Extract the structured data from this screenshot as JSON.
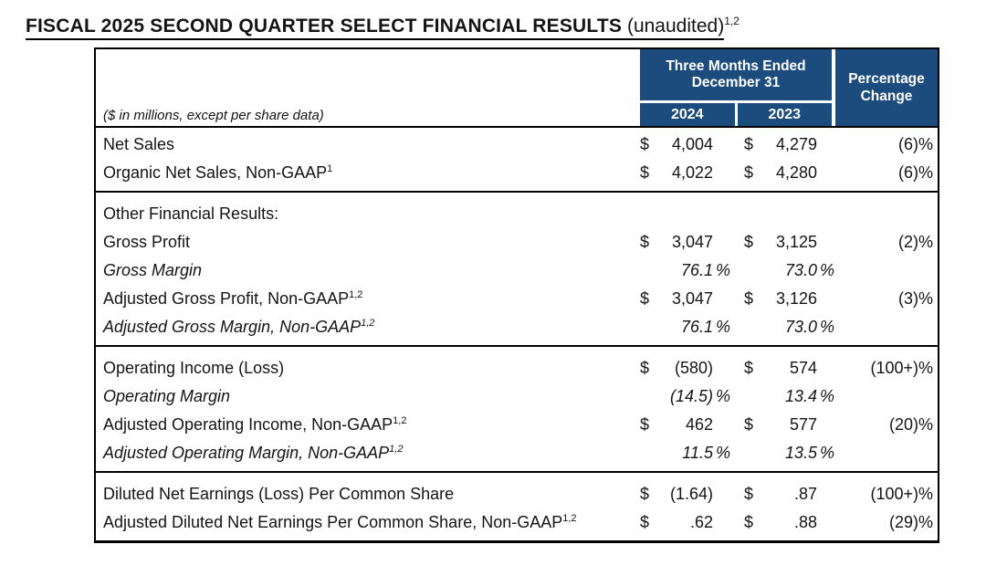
{
  "title": {
    "main": "FISCAL 2025 SECOND QUARTER SELECT FINANCIAL RESULTS",
    "unaudited": " (unaudited)",
    "superscript": "1,2"
  },
  "table": {
    "colors": {
      "header_bg": "#1C4C7E",
      "header_text": "#FFFFFF",
      "border": "#000000"
    },
    "header": {
      "period_line1": "Three Months Ended",
      "period_line2": "December 31",
      "year_2024": "2024",
      "year_2023": "2023",
      "pct_line1": "Percentage",
      "pct_line2": "Change",
      "units_note": "($ in millions, except per share data)"
    },
    "sections": [
      {
        "rows": [
          {
            "label": "Net Sales",
            "sup": "",
            "italic": false,
            "d1": "$",
            "v1": "4,004",
            "u1": "",
            "d2": "$",
            "v2": "4,279",
            "u2": "",
            "pct": "(6)%"
          },
          {
            "label": "Organic Net Sales, Non-GAAP",
            "sup": "1",
            "italic": false,
            "d1": "$",
            "v1": "4,022",
            "u1": "",
            "d2": "$",
            "v2": "4,280",
            "u2": "",
            "pct": "(6)%"
          }
        ]
      },
      {
        "rows": [
          {
            "label": "Other Financial Results:",
            "sup": "",
            "italic": false,
            "d1": "",
            "v1": "",
            "u1": "",
            "d2": "",
            "v2": "",
            "u2": "",
            "pct": ""
          },
          {
            "label": "Gross Profit",
            "sup": "",
            "italic": false,
            "d1": "$",
            "v1": "3,047",
            "u1": "",
            "d2": "$",
            "v2": "3,125",
            "u2": "",
            "pct": "(2)%"
          },
          {
            "label": "Gross Margin",
            "sup": "",
            "italic": true,
            "d1": "",
            "v1": "76.1",
            "u1": "%",
            "d2": "",
            "v2": "73.0",
            "u2": "%",
            "pct": ""
          },
          {
            "label": "Adjusted Gross Profit, Non-GAAP",
            "sup": "1,2",
            "italic": false,
            "d1": "$",
            "v1": "3,047",
            "u1": "",
            "d2": "$",
            "v2": "3,126",
            "u2": "",
            "pct": "(3)%"
          },
          {
            "label": "Adjusted Gross Margin, Non-GAAP",
            "sup": "1,2",
            "italic": true,
            "d1": "",
            "v1": "76.1",
            "u1": "%",
            "d2": "",
            "v2": "73.0",
            "u2": "%",
            "pct": ""
          }
        ]
      },
      {
        "rows": [
          {
            "label": "Operating Income (Loss)",
            "sup": "",
            "italic": false,
            "d1": "$",
            "v1": "(580)",
            "u1": "",
            "d2": "$",
            "v2": "574",
            "u2": "",
            "pct": "(100+)%"
          },
          {
            "label": "Operating Margin",
            "sup": "",
            "italic": true,
            "d1": "",
            "v1": "(14.5)",
            "u1": "%",
            "d2": "",
            "v2": "13.4",
            "u2": "%",
            "pct": ""
          },
          {
            "label": "Adjusted Operating Income, Non-GAAP",
            "sup": "1,2",
            "italic": false,
            "d1": "$",
            "v1": "462",
            "u1": "",
            "d2": "$",
            "v2": "577",
            "u2": "",
            "pct": "(20)%"
          },
          {
            "label": "Adjusted Operating Margin, Non-GAAP",
            "sup": "1,2",
            "italic": true,
            "d1": "",
            "v1": "11.5",
            "u1": "%",
            "d2": "",
            "v2": "13.5",
            "u2": "%",
            "pct": ""
          }
        ]
      },
      {
        "rows": [
          {
            "label": "Diluted Net Earnings (Loss) Per Common Share",
            "sup": "",
            "italic": false,
            "d1": "$",
            "v1": "(1.64)",
            "u1": "",
            "d2": "$",
            "v2": ".87",
            "u2": "",
            "pct": "(100+)%"
          },
          {
            "label": "Adjusted Diluted Net Earnings Per Common Share, Non-GAAP",
            "sup": "1,2",
            "italic": false,
            "d1": "$",
            "v1": ".62",
            "u1": "",
            "d2": "$",
            "v2": ".88",
            "u2": "",
            "pct": "(29)%"
          }
        ]
      }
    ]
  }
}
